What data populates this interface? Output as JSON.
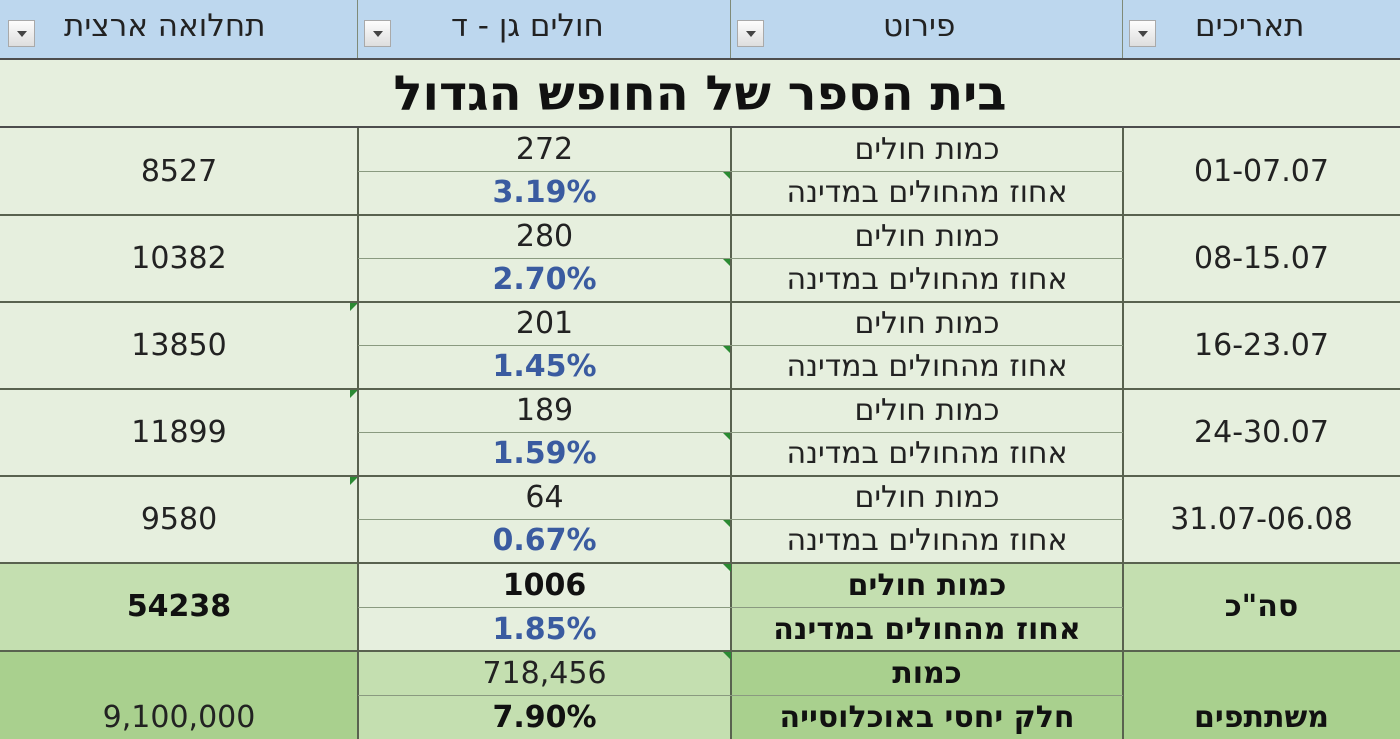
{
  "headers": {
    "national": "תחלואה ארצית",
    "kindergarten": "חולים גן - ד",
    "detail": "פירוט",
    "dates": "תאריכים"
  },
  "title": "בית הספר של החופש הגדול",
  "labels": {
    "count": "כמות חולים",
    "percent": "אחוז מהחולים במדינה"
  },
  "weeks": [
    {
      "dates": "01-07.07",
      "count": "272",
      "percent": "3.19%",
      "national": "8527"
    },
    {
      "dates": "08-15.07",
      "count": "280",
      "percent": "2.70%",
      "national": "10382"
    },
    {
      "dates": "16-23.07",
      "count": "201",
      "percent": "1.45%",
      "national": "13850"
    },
    {
      "dates": "24-30.07",
      "count": "189",
      "percent": "1.59%",
      "national": "11899"
    },
    {
      "dates": "31.07-06.08",
      "count": "64",
      "percent": "0.67%",
      "national": "9580"
    }
  ],
  "total": {
    "label": "סה\"כ",
    "count_label": "כמות חולים",
    "percent_label": "אחוז מהחולים במדינה",
    "count": "1006",
    "percent": "1.85%",
    "national": "54238"
  },
  "participants": {
    "label": "משתתפים",
    "amount_label": "כמות",
    "share_label": "חלק יחסי באוכלוסייה",
    "amount": "718,456",
    "share": "7.90%",
    "population": "9,100,000"
  },
  "colors": {
    "header_bg": "#bdd7ee",
    "row_bg": "#e6efde",
    "total_bg": "#c4dfb0",
    "participants_bg": "#a9d08e",
    "percent_text": "#3a5ba0"
  }
}
